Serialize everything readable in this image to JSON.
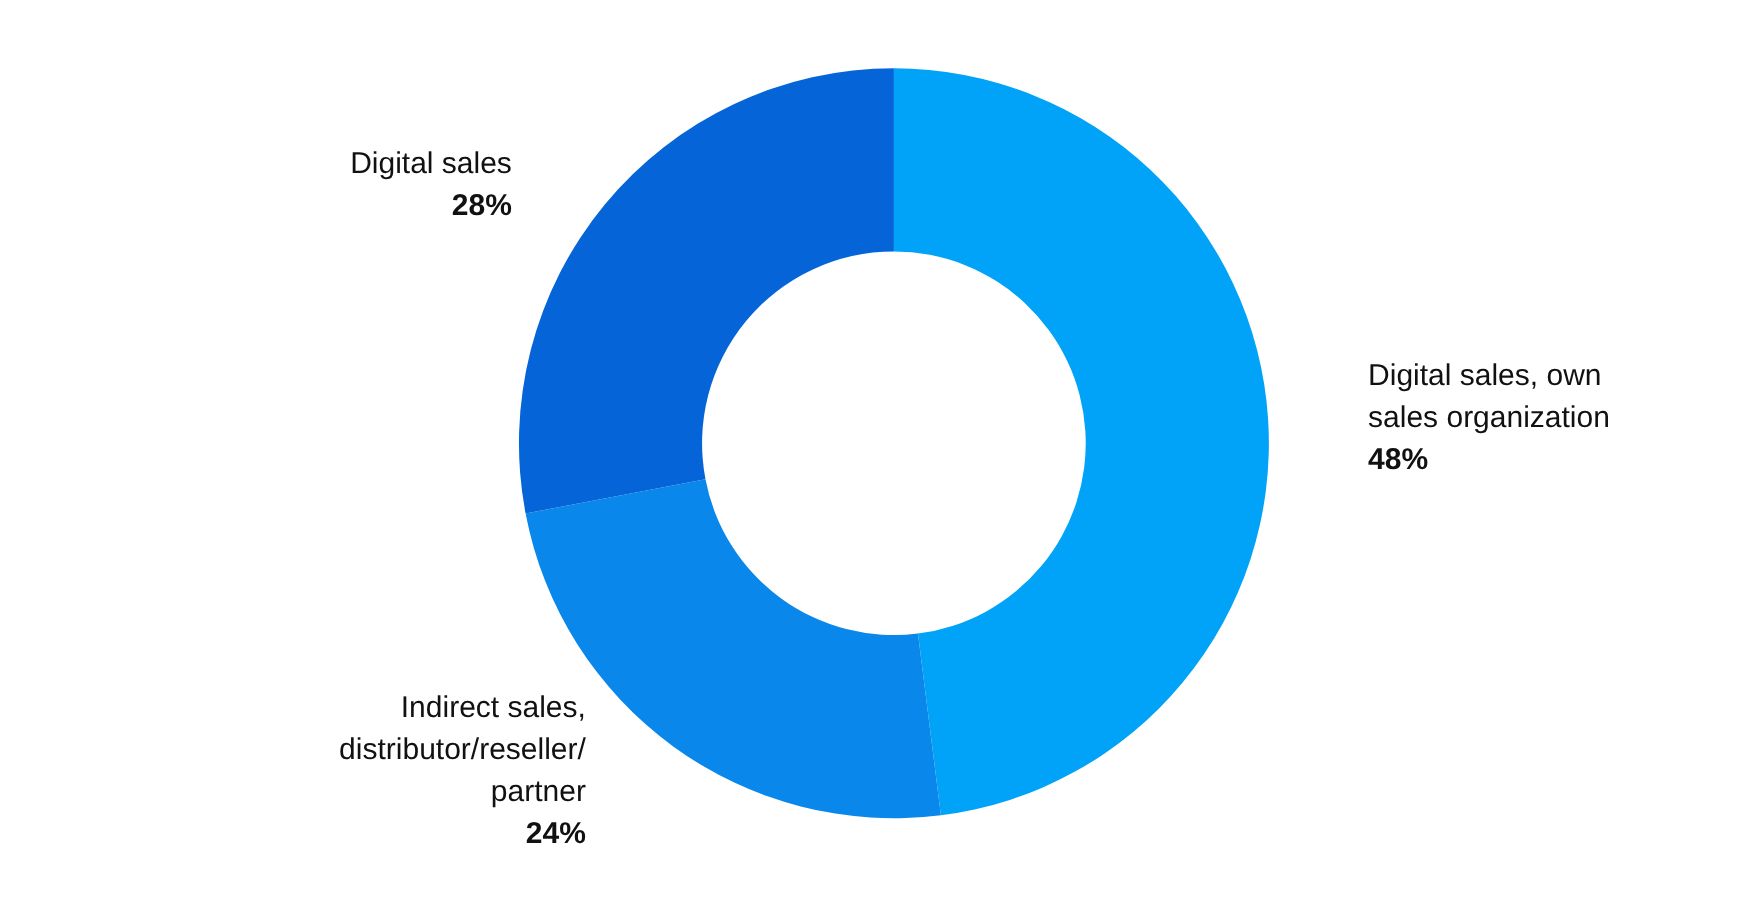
{
  "chart_data": {
    "type": "donut",
    "categories": [
      "Digital sales, own sales organization",
      "Indirect sales, distributor/reseller/partner",
      "Digital sales"
    ],
    "values": [
      48,
      24,
      28
    ],
    "colors": [
      "#00a3f7",
      "#0a87ea",
      "#0565d8"
    ],
    "value_labels": [
      "48%",
      "24%",
      "28%"
    ]
  }
}
